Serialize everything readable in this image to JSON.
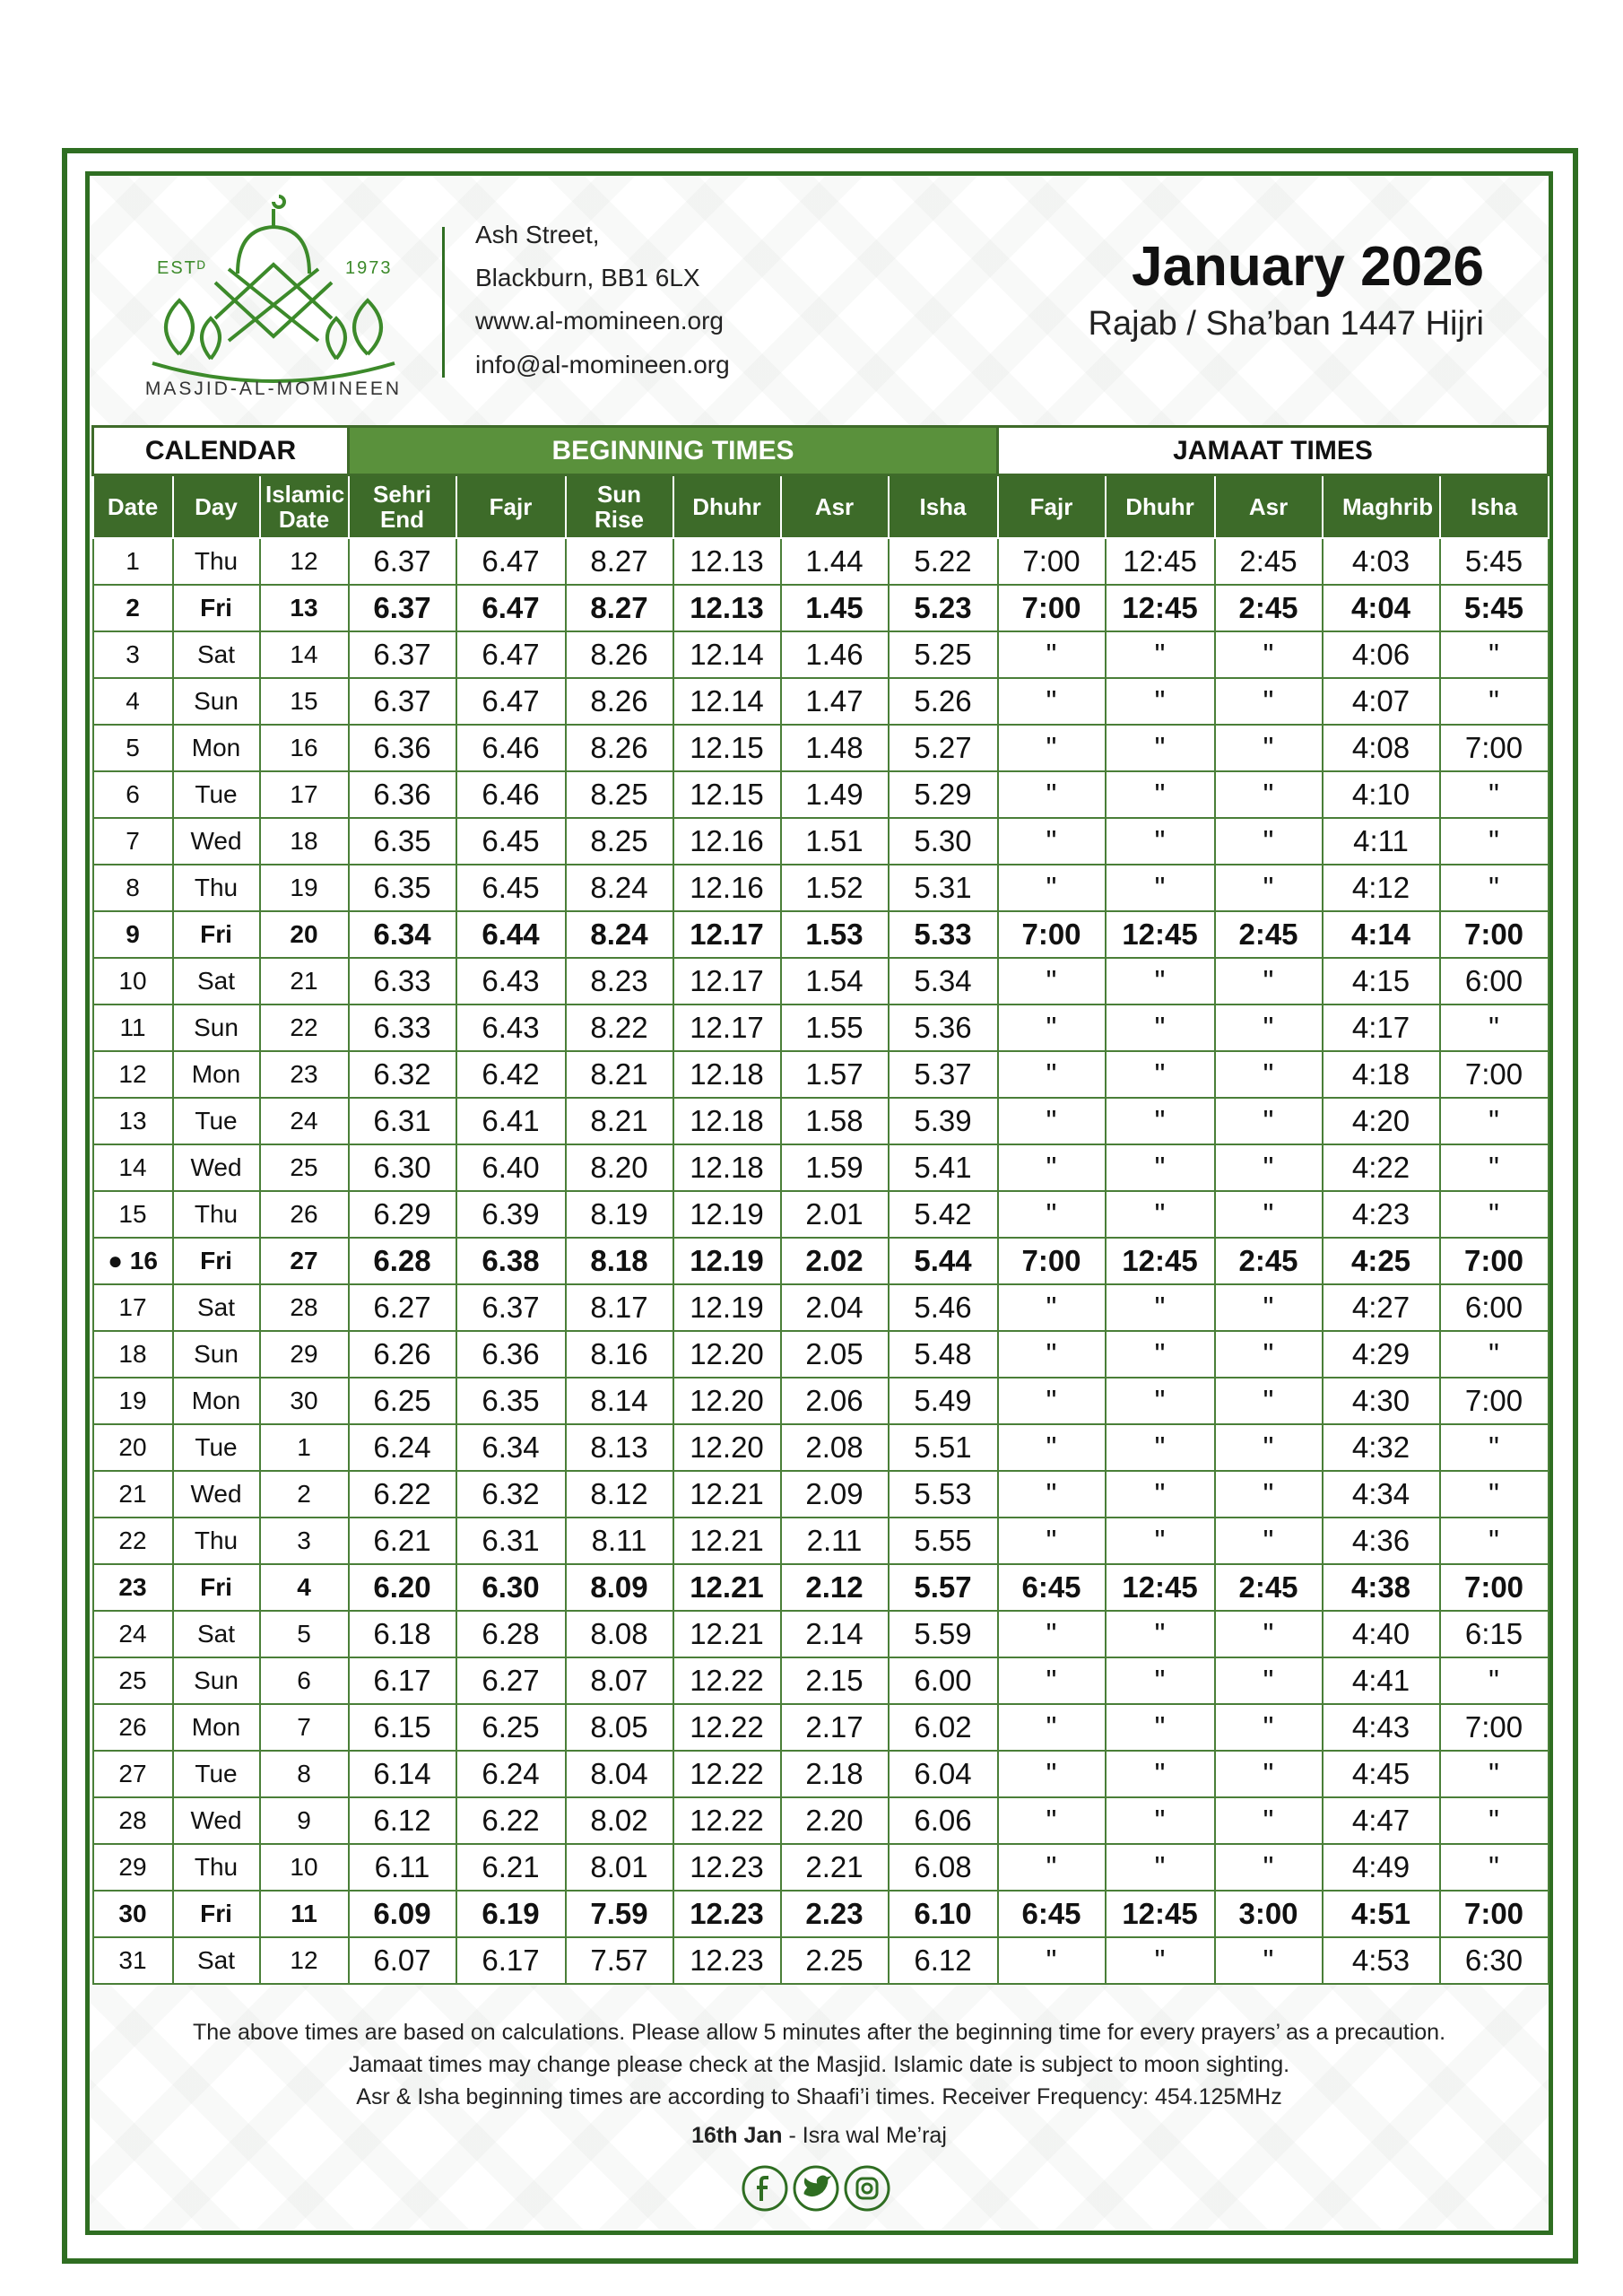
{
  "header": {
    "logo": {
      "est": "ESTᴰ",
      "year": "1973",
      "name": "MASJID-AL-MOMINEEN"
    },
    "address": [
      "Ash Street,",
      "Blackburn, BB1 6LX",
      "www.al-momineen.org",
      "info@al-momineen.org"
    ],
    "title": "January 2026",
    "subtitle": "Rajab / Sha’ban 1447 Hijri"
  },
  "table": {
    "groups": [
      {
        "label": "CALENDAR",
        "span": 3
      },
      {
        "label": "BEGINNING TIMES",
        "span": 6
      },
      {
        "label": "JAMAAT TIMES",
        "span": 5
      }
    ],
    "columns": [
      "Date",
      "Day",
      "Islamic Date",
      "Sehri End",
      "Fajr",
      "Sun Rise",
      "Dhuhr",
      "Asr",
      "Isha",
      "Fajr",
      "Dhuhr",
      "Asr",
      "Maghrib",
      "Isha"
    ],
    "bold_rows": [
      1,
      8,
      15,
      22,
      29
    ],
    "rows": [
      [
        "1",
        "Thu",
        "12",
        "6.37",
        "6.47",
        "8.27",
        "12.13",
        "1.44",
        "5.22",
        "7:00",
        "12:45",
        "2:45",
        "4:03",
        "5:45"
      ],
      [
        "2",
        "Fri",
        "13",
        "6.37",
        "6.47",
        "8.27",
        "12.13",
        "1.45",
        "5.23",
        "7:00",
        "12:45",
        "2:45",
        "4:04",
        "5:45"
      ],
      [
        "3",
        "Sat",
        "14",
        "6.37",
        "6.47",
        "8.26",
        "12.14",
        "1.46",
        "5.25",
        "\"",
        "\"",
        "\"",
        "4:06",
        "\""
      ],
      [
        "4",
        "Sun",
        "15",
        "6.37",
        "6.47",
        "8.26",
        "12.14",
        "1.47",
        "5.26",
        "\"",
        "\"",
        "\"",
        "4:07",
        "\""
      ],
      [
        "5",
        "Mon",
        "16",
        "6.36",
        "6.46",
        "8.26",
        "12.15",
        "1.48",
        "5.27",
        "\"",
        "\"",
        "\"",
        "4:08",
        "7:00"
      ],
      [
        "6",
        "Tue",
        "17",
        "6.36",
        "6.46",
        "8.25",
        "12.15",
        "1.49",
        "5.29",
        "\"",
        "\"",
        "\"",
        "4:10",
        "\""
      ],
      [
        "7",
        "Wed",
        "18",
        "6.35",
        "6.45",
        "8.25",
        "12.16",
        "1.51",
        "5.30",
        "\"",
        "\"",
        "\"",
        "4:11",
        "\""
      ],
      [
        "8",
        "Thu",
        "19",
        "6.35",
        "6.45",
        "8.24",
        "12.16",
        "1.52",
        "5.31",
        "\"",
        "\"",
        "\"",
        "4:12",
        "\""
      ],
      [
        "9",
        "Fri",
        "20",
        "6.34",
        "6.44",
        "8.24",
        "12.17",
        "1.53",
        "5.33",
        "7:00",
        "12:45",
        "2:45",
        "4:14",
        "7:00"
      ],
      [
        "10",
        "Sat",
        "21",
        "6.33",
        "6.43",
        "8.23",
        "12.17",
        "1.54",
        "5.34",
        "\"",
        "\"",
        "\"",
        "4:15",
        "6:00"
      ],
      [
        "11",
        "Sun",
        "22",
        "6.33",
        "6.43",
        "8.22",
        "12.17",
        "1.55",
        "5.36",
        "\"",
        "\"",
        "\"",
        "4:17",
        "\""
      ],
      [
        "12",
        "Mon",
        "23",
        "6.32",
        "6.42",
        "8.21",
        "12.18",
        "1.57",
        "5.37",
        "\"",
        "\"",
        "\"",
        "4:18",
        "7:00"
      ],
      [
        "13",
        "Tue",
        "24",
        "6.31",
        "6.41",
        "8.21",
        "12.18",
        "1.58",
        "5.39",
        "\"",
        "\"",
        "\"",
        "4:20",
        "\""
      ],
      [
        "14",
        "Wed",
        "25",
        "6.30",
        "6.40",
        "8.20",
        "12.18",
        "1.59",
        "5.41",
        "\"",
        "\"",
        "\"",
        "4:22",
        "\""
      ],
      [
        "15",
        "Thu",
        "26",
        "6.29",
        "6.39",
        "8.19",
        "12.19",
        "2.01",
        "5.42",
        "\"",
        "\"",
        "\"",
        "4:23",
        "\""
      ],
      [
        "● 16",
        "Fri",
        "27",
        "6.28",
        "6.38",
        "8.18",
        "12.19",
        "2.02",
        "5.44",
        "7:00",
        "12:45",
        "2:45",
        "4:25",
        "7:00"
      ],
      [
        "17",
        "Sat",
        "28",
        "6.27",
        "6.37",
        "8.17",
        "12.19",
        "2.04",
        "5.46",
        "\"",
        "\"",
        "\"",
        "4:27",
        "6:00"
      ],
      [
        "18",
        "Sun",
        "29",
        "6.26",
        "6.36",
        "8.16",
        "12.20",
        "2.05",
        "5.48",
        "\"",
        "\"",
        "\"",
        "4:29",
        "\""
      ],
      [
        "19",
        "Mon",
        "30",
        "6.25",
        "6.35",
        "8.14",
        "12.20",
        "2.06",
        "5.49",
        "\"",
        "\"",
        "\"",
        "4:30",
        "7:00"
      ],
      [
        "20",
        "Tue",
        "1",
        "6.24",
        "6.34",
        "8.13",
        "12.20",
        "2.08",
        "5.51",
        "\"",
        "\"",
        "\"",
        "4:32",
        "\""
      ],
      [
        "21",
        "Wed",
        "2",
        "6.22",
        "6.32",
        "8.12",
        "12.21",
        "2.09",
        "5.53",
        "\"",
        "\"",
        "\"",
        "4:34",
        "\""
      ],
      [
        "22",
        "Thu",
        "3",
        "6.21",
        "6.31",
        "8.11",
        "12.21",
        "2.11",
        "5.55",
        "\"",
        "\"",
        "\"",
        "4:36",
        "\""
      ],
      [
        "23",
        "Fri",
        "4",
        "6.20",
        "6.30",
        "8.09",
        "12.21",
        "2.12",
        "5.57",
        "6:45",
        "12:45",
        "2:45",
        "4:38",
        "7:00"
      ],
      [
        "24",
        "Sat",
        "5",
        "6.18",
        "6.28",
        "8.08",
        "12.21",
        "2.14",
        "5.59",
        "\"",
        "\"",
        "\"",
        "4:40",
        "6:15"
      ],
      [
        "25",
        "Sun",
        "6",
        "6.17",
        "6.27",
        "8.07",
        "12.22",
        "2.15",
        "6.00",
        "\"",
        "\"",
        "\"",
        "4:41",
        "\""
      ],
      [
        "26",
        "Mon",
        "7",
        "6.15",
        "6.25",
        "8.05",
        "12.22",
        "2.17",
        "6.02",
        "\"",
        "\"",
        "\"",
        "4:43",
        "7:00"
      ],
      [
        "27",
        "Tue",
        "8",
        "6.14",
        "6.24",
        "8.04",
        "12.22",
        "2.18",
        "6.04",
        "\"",
        "\"",
        "\"",
        "4:45",
        "\""
      ],
      [
        "28",
        "Wed",
        "9",
        "6.12",
        "6.22",
        "8.02",
        "12.22",
        "2.20",
        "6.06",
        "\"",
        "\"",
        "\"",
        "4:47",
        "\""
      ],
      [
        "29",
        "Thu",
        "10",
        "6.11",
        "6.21",
        "8.01",
        "12.23",
        "2.21",
        "6.08",
        "\"",
        "\"",
        "\"",
        "4:49",
        "\""
      ],
      [
        "30",
        "Fri",
        "11",
        "6.09",
        "6.19",
        "7.59",
        "12.23",
        "2.23",
        "6.10",
        "6:45",
        "12:45",
        "3:00",
        "4:51",
        "7:00"
      ],
      [
        "31",
        "Sat",
        "12",
        "6.07",
        "6.17",
        "7.57",
        "12.23",
        "2.25",
        "6.12",
        "\"",
        "\"",
        "\"",
        "4:53",
        "6:30"
      ]
    ]
  },
  "footer": {
    "notes": [
      "The above times are based on calculations. Please allow 5 minutes after the beginning time for every prayers’ as a precaution.",
      "Jamaat times may change please check at the Masjid. Islamic date is subject to moon sighting.",
      "Asr & Isha beginning times are according to Shaafi’i times. Receiver Frequency: 454.125MHz"
    ],
    "event_date": "16th Jan",
    "event_name": " - Isra wal Me’raj"
  }
}
